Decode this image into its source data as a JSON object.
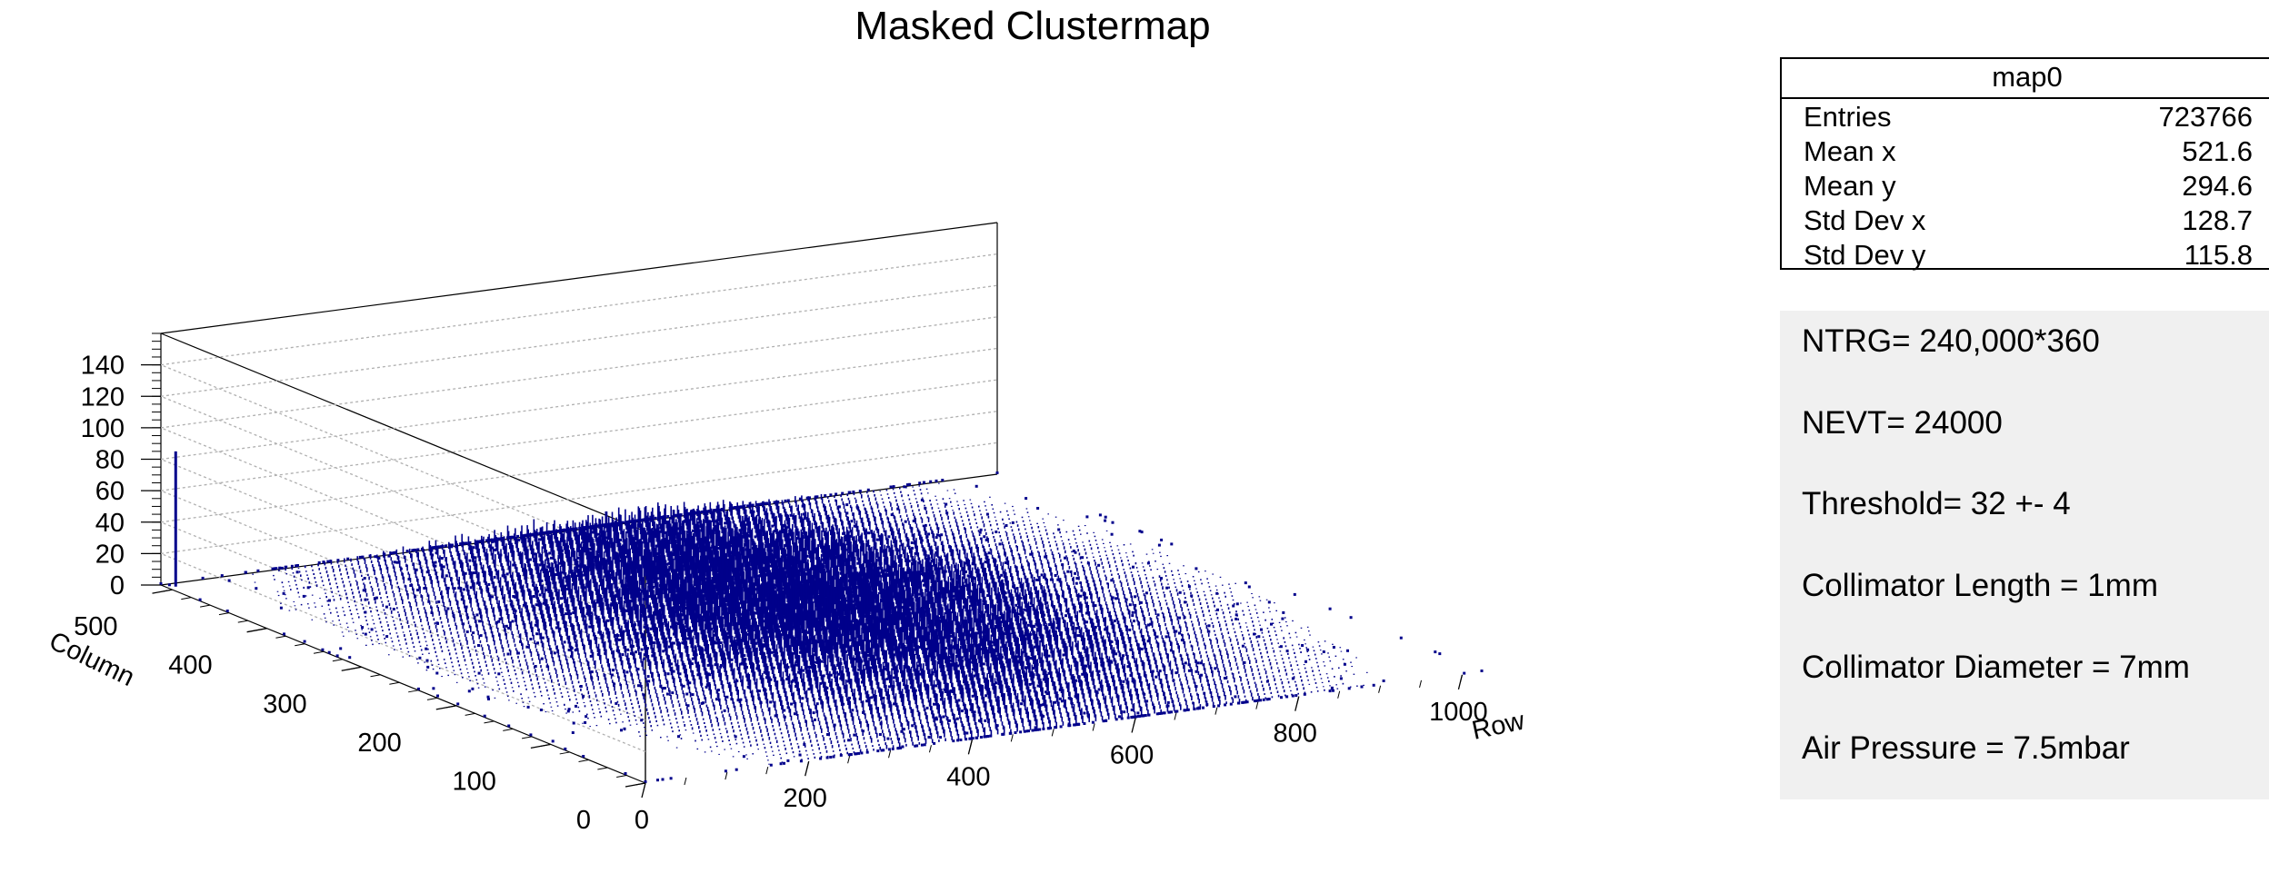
{
  "title": "Masked Clustermap",
  "stats": {
    "name": "map0",
    "rows": [
      {
        "label": "Entries",
        "value": "723766"
      },
      {
        "label": "Mean x",
        "value": "521.6"
      },
      {
        "label": "Mean y",
        "value": "294.6"
      },
      {
        "label": "Std Dev x",
        "value": "128.7"
      },
      {
        "label": "Std Dev y",
        "value": "115.8"
      }
    ]
  },
  "info_lines": [
    "NTRG= 240,000*360",
    "NEVT= 24000",
    "Threshold= 32 +- 4",
    "Collimator Length = 1mm",
    "Collimator Diameter = 7mm",
    "Air Pressure = 7.5mbar"
  ],
  "colors": {
    "bars": "#00008b",
    "frame": "#000000",
    "grid": "#b0b0b0",
    "pave_bg": "#f0f0f0"
  },
  "chart_data": {
    "type": "lego3d",
    "title": "Masked Clustermap",
    "xlabel": "Row",
    "ylabel": "Column",
    "xlim": [
      0,
      1024
    ],
    "ylim": [
      0,
      512
    ],
    "zlim": [
      0,
      160
    ],
    "x_ticks": [
      0,
      200,
      400,
      600,
      800,
      1000
    ],
    "y_ticks": [
      0,
      100,
      200,
      300,
      400,
      500
    ],
    "z_ticks": [
      0,
      20,
      40,
      60,
      80,
      100,
      120,
      140
    ],
    "grid": "z-gridlines on back walls",
    "distribution": {
      "entries": 723766,
      "mean_x": 521.6,
      "mean_y": 294.6,
      "std_x": 128.7,
      "std_y": 115.8,
      "typical_bin_max": 30
    },
    "hot_pixels": [
      {
        "x": 10,
        "y": 505,
        "value": 86
      }
    ]
  }
}
